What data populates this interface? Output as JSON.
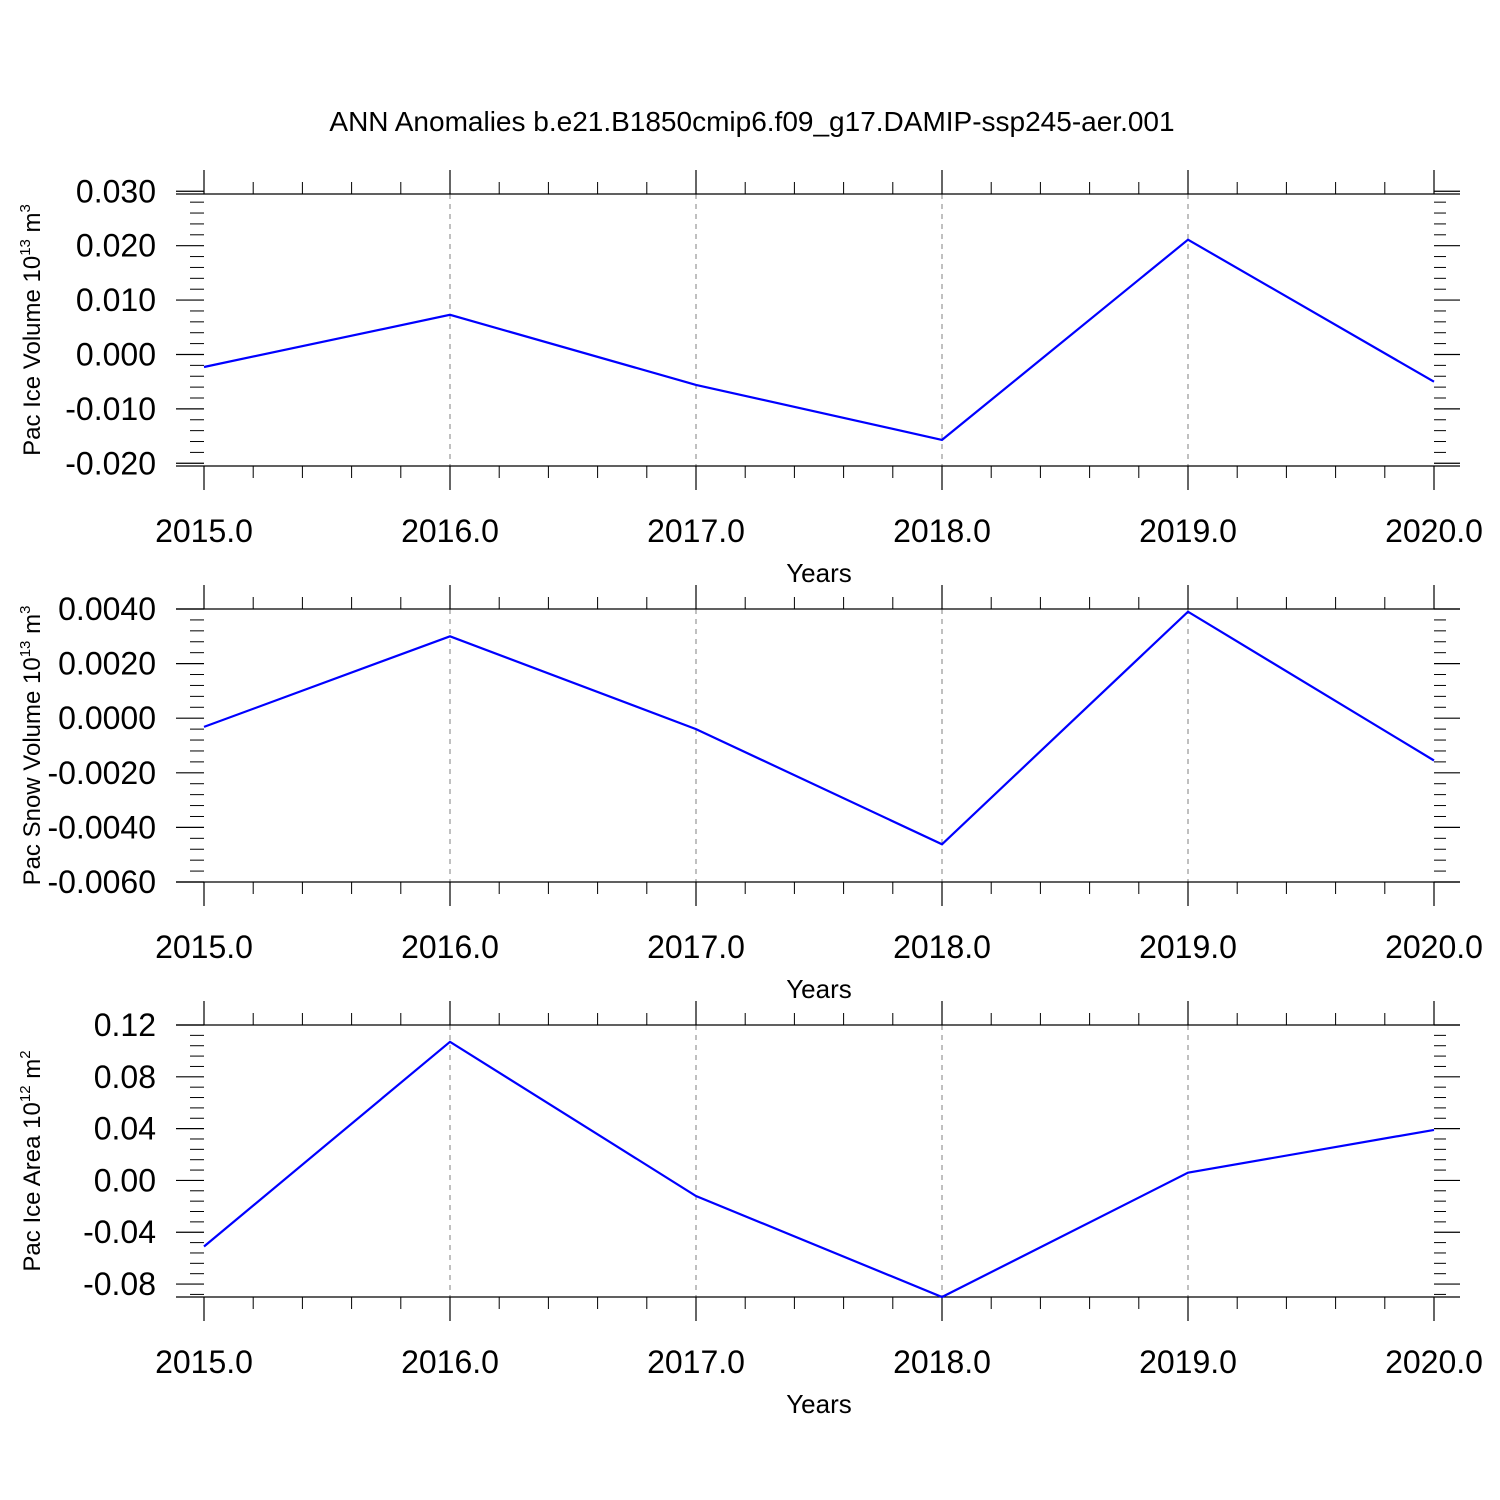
{
  "title": "ANN Anomalies b.e21.B1850cmip6.f09_g17.DAMIP-ssp245-aer.001",
  "colors": {
    "line": "#0000ff",
    "axis": "#000000",
    "grid": "#808080"
  },
  "chart_data": [
    {
      "type": "line",
      "xlabel": "Years",
      "ylabel": {
        "text": "Pac Ice Volume 10",
        "sup": "13",
        "unit": " m",
        "unit_sup": "3"
      },
      "xlim": [
        2015,
        2020
      ],
      "ylim": [
        -0.0205,
        0.0295
      ],
      "x_ticks": [
        2015,
        2016,
        2017,
        2018,
        2019,
        2020
      ],
      "x_tick_labels": [
        "2015.0",
        "2016.0",
        "2017.0",
        "2018.0",
        "2019.0",
        "2020.0"
      ],
      "y_ticks": [
        0.03,
        0.02,
        0.01,
        0.0,
        -0.01,
        -0.02
      ],
      "y_tick_labels": [
        "0.030",
        "0.020",
        "0.010",
        "0.000",
        "-0.010",
        "-0.020"
      ],
      "grid": "vertical dashed at major x ticks",
      "series": [
        {
          "x": [
            2015,
            2016,
            2017,
            2018,
            2019,
            2020
          ],
          "values": [
            -0.0023,
            0.0073,
            -0.0056,
            -0.0157,
            0.0211,
            -0.005
          ]
        }
      ]
    },
    {
      "type": "line",
      "xlabel": "Years",
      "ylabel": {
        "text": "Pac Snow Volume 10",
        "sup": "13",
        "unit": " m",
        "unit_sup": "3"
      },
      "xlim": [
        2015,
        2020
      ],
      "ylim": [
        -0.006,
        0.004
      ],
      "x_ticks": [
        2015,
        2016,
        2017,
        2018,
        2019,
        2020
      ],
      "x_tick_labels": [
        "2015.0",
        "2016.0",
        "2017.0",
        "2018.0",
        "2019.0",
        "2020.0"
      ],
      "y_ticks": [
        0.004,
        0.002,
        0.0,
        -0.002,
        -0.004,
        -0.006
      ],
      "y_tick_labels": [
        "0.0040",
        "0.0020",
        "0.0000",
        "-0.0020",
        "-0.0040",
        "-0.0060"
      ],
      "grid": "vertical dashed at major x ticks",
      "series": [
        {
          "x": [
            2015,
            2016,
            2017,
            2018,
            2019,
            2020
          ],
          "values": [
            -0.00032,
            0.003,
            -0.0004,
            -0.00462,
            0.0039,
            -0.00155
          ]
        }
      ]
    },
    {
      "type": "line",
      "xlabel": "Years",
      "ylabel": {
        "text": "Pac Ice Area 10",
        "sup": "12",
        "unit": " m",
        "unit_sup": "2"
      },
      "xlim": [
        2015,
        2020
      ],
      "ylim": [
        -0.09,
        0.12
      ],
      "x_ticks": [
        2015,
        2016,
        2017,
        2018,
        2019,
        2020
      ],
      "x_tick_labels": [
        "2015.0",
        "2016.0",
        "2017.0",
        "2018.0",
        "2019.0",
        "2020.0"
      ],
      "y_ticks": [
        0.12,
        0.08,
        0.04,
        0.0,
        -0.04,
        -0.08
      ],
      "y_tick_labels": [
        "0.12",
        "0.08",
        "0.04",
        "0.00",
        "-0.04",
        "-0.08"
      ],
      "grid": "vertical dashed at major x ticks",
      "series": [
        {
          "x": [
            2015,
            2016,
            2017,
            2018,
            2019,
            2020
          ],
          "values": [
            -0.051,
            0.107,
            -0.012,
            -0.09,
            0.006,
            0.039
          ]
        }
      ]
    }
  ]
}
